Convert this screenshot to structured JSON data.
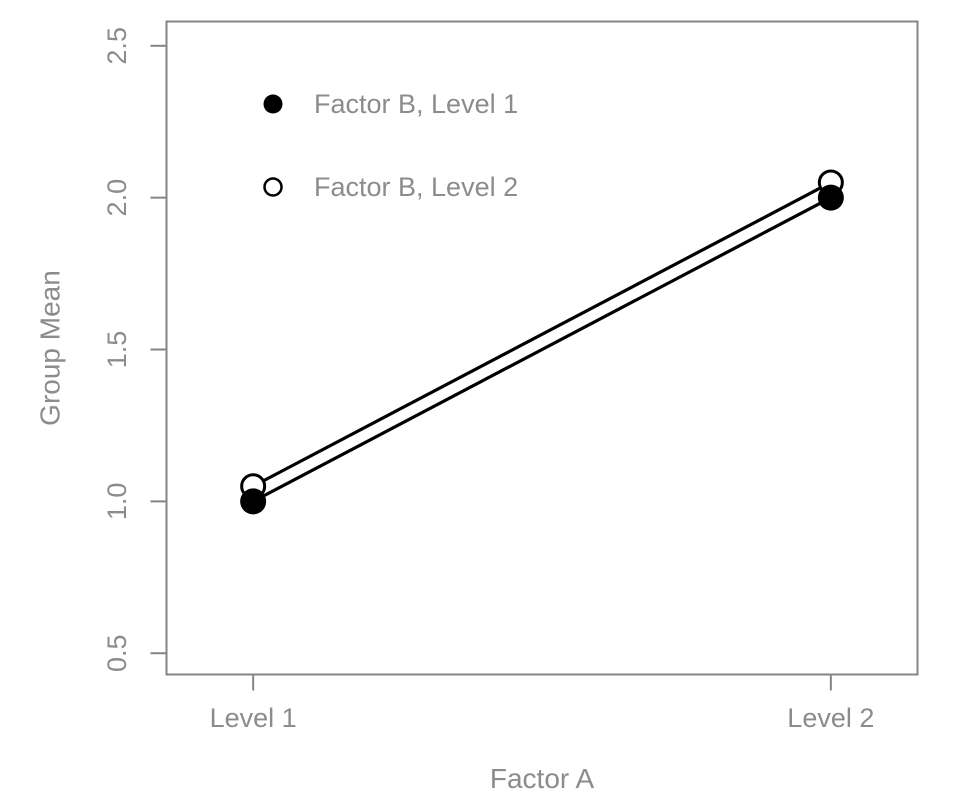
{
  "chart_data": {
    "type": "line",
    "title": "",
    "xlabel": "Factor A",
    "ylabel": "Group Mean",
    "categories": [
      "Level 1",
      "Level 2"
    ],
    "x": [
      1,
      2
    ],
    "series": [
      {
        "name": "Factor B, Level 1",
        "marker": "filled-circle",
        "values": [
          1.0,
          2.0
        ]
      },
      {
        "name": "Factor B, Level 2",
        "marker": "open-circle",
        "values": [
          1.05,
          2.05
        ]
      }
    ],
    "xlim": [
      0.85,
      2.15
    ],
    "ylim": [
      0.43,
      2.58
    ],
    "yticks": [
      0.5,
      1.0,
      1.5,
      2.0,
      2.5
    ],
    "ytick_labels": [
      "0.5",
      "1.0",
      "1.5",
      "2.0",
      "2.5"
    ],
    "grid": false,
    "legend_position": "top-left-inside",
    "colors": {
      "line": "#000000",
      "marker_fill": "#000000",
      "marker_open_fill": "#ffffff",
      "axis": "#858585",
      "text": "#8c8c8c"
    }
  }
}
